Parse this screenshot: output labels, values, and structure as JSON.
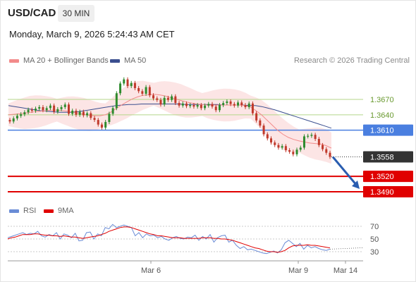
{
  "header": {
    "symbol": "USD/CAD",
    "timeframe": "30 MIN",
    "datetime": "Monday, March 9, 2026 5:24:43 AM CET"
  },
  "legend": {
    "ma20_label": "MA 20 + Bollinger Bands",
    "ma50_label": "MA 50",
    "credit": "Research © 2026 Trading Central",
    "rsi_label": "RSI",
    "ma9_label": "9MA"
  },
  "colors": {
    "ma20": "#f28b8b",
    "ma50": "#3b4f8f",
    "bands_fill": "#fbdcdc",
    "up_candle": "#2e8b2e",
    "down_candle": "#c0392b",
    "resistance": "#b5d68a",
    "pivot": "#4a7fe0",
    "support": "#e00000",
    "current": "#333333",
    "arrow": "#2a5db0",
    "rsi": "#6a8cd6",
    "rsi_ma": "#e00000"
  },
  "chart_data": {
    "type": "candlestick",
    "symbol": "USD/CAD",
    "interval": "30 MIN",
    "ylim": [
      1.3475,
      1.3725
    ],
    "x_ticks": [
      "Mar 6",
      "Mar 9",
      "Mar 14"
    ],
    "levels": [
      {
        "value": 1.367,
        "label": "1.3670",
        "kind": "resistance"
      },
      {
        "value": 1.364,
        "label": "1.3640",
        "kind": "resistance"
      },
      {
        "value": 1.361,
        "label": "1.3610",
        "kind": "pivot"
      },
      {
        "value": 1.3558,
        "label": "1.3558",
        "kind": "current"
      },
      {
        "value": 1.352,
        "label": "1.3520",
        "kind": "support"
      },
      {
        "value": 1.349,
        "label": "1.3490",
        "kind": "support"
      }
    ],
    "candles_close": [
      1.3627,
      1.3633,
      1.3638,
      1.3641,
      1.3645,
      1.365,
      1.3648,
      1.3652,
      1.3655,
      1.3649,
      1.3653,
      1.3658,
      1.3646,
      1.3651,
      1.3655,
      1.366,
      1.3642,
      1.3648,
      1.364,
      1.3646,
      1.3639,
      1.3643,
      1.3634,
      1.363,
      1.3621,
      1.3615,
      1.3626,
      1.3642,
      1.3653,
      1.3682,
      1.3701,
      1.3709,
      1.3696,
      1.3702,
      1.3692,
      1.3686,
      1.3681,
      1.3694,
      1.3678,
      1.3672,
      1.3669,
      1.366,
      1.3673,
      1.3669,
      1.3676,
      1.3663,
      1.3658,
      1.3662,
      1.3657,
      1.3659,
      1.3656,
      1.3659,
      1.3653,
      1.3658,
      1.3661,
      1.3656,
      1.3649,
      1.3659,
      1.3663,
      1.3666,
      1.3661,
      1.3658,
      1.3664,
      1.3659,
      1.3655,
      1.3662,
      1.3643,
      1.3629,
      1.3619,
      1.3602,
      1.3594,
      1.3586,
      1.3581,
      1.3576,
      1.3579,
      1.3571,
      1.3568,
      1.3563,
      1.3572,
      1.3576,
      1.3598,
      1.3599,
      1.3601,
      1.3593,
      1.3581,
      1.3573,
      1.3566,
      1.3558
    ],
    "ma20": [
      1.364,
      1.3641,
      1.3642,
      1.3643,
      1.3645,
      1.3646,
      1.3647,
      1.3648,
      1.3649,
      1.3649,
      1.3648,
      1.3647,
      1.3645,
      1.3643,
      1.3641,
      1.3639,
      1.3638,
      1.3638,
      1.364,
      1.3645,
      1.3652,
      1.3659,
      1.3665,
      1.3671,
      1.3675,
      1.3678,
      1.3679,
      1.368,
      1.3679,
      1.3677,
      1.3674,
      1.3671,
      1.3668,
      1.3665,
      1.3663,
      1.3661,
      1.366,
      1.3659,
      1.3659,
      1.3659,
      1.3659,
      1.3659,
      1.3659,
      1.3659,
      1.3658,
      1.3655,
      1.3648,
      1.364,
      1.363,
      1.362,
      1.361,
      1.3602,
      1.3596,
      1.3592,
      1.3589,
      1.3587,
      1.3585,
      1.3584,
      1.3583,
      1.358,
      1.3575
    ],
    "ma50": [
      1.3658,
      1.3656,
      1.3654,
      1.3652,
      1.365,
      1.3648,
      1.3647,
      1.3646,
      1.3645,
      1.3645,
      1.3645,
      1.3646,
      1.3648,
      1.365,
      1.3652,
      1.3654,
      1.3656,
      1.3658,
      1.3659,
      1.366,
      1.366,
      1.3661,
      1.3661,
      1.3661,
      1.3661,
      1.3661,
      1.3661,
      1.3661,
      1.366,
      1.366,
      1.366,
      1.366,
      1.366,
      1.366,
      1.3659,
      1.3659,
      1.3659,
      1.3659,
      1.3658,
      1.3658,
      1.3656,
      1.3653,
      1.365,
      1.3646,
      1.3642,
      1.3638,
      1.3634,
      1.363,
      1.3626,
      1.3622,
      1.3618,
      1.3614
    ],
    "forecast_target": 1.349,
    "rsi": {
      "ylim": [
        20,
        80
      ],
      "ticks": [
        70,
        50,
        30
      ],
      "values": [
        52,
        54,
        56,
        58,
        60,
        57,
        59,
        58,
        62,
        55,
        53,
        57,
        55,
        60,
        50,
        58,
        56,
        52,
        59,
        47,
        48,
        60,
        61,
        50,
        58,
        55,
        68,
        66,
        73,
        68,
        70,
        72,
        70,
        68,
        55,
        60,
        52,
        58,
        55,
        56,
        52,
        54,
        50,
        48,
        52,
        54,
        51,
        50,
        53,
        52,
        56,
        48,
        54,
        50,
        57,
        45,
        52,
        55,
        56,
        45,
        48,
        40,
        35,
        38,
        33,
        34,
        32,
        30,
        28,
        27,
        29,
        31,
        28,
        33,
        44,
        48,
        43,
        38,
        43,
        34,
        40,
        36,
        38,
        35,
        33,
        32,
        34
      ],
      "ma9": [
        50,
        52,
        53,
        55,
        57,
        57,
        57,
        58,
        58,
        57,
        56,
        56,
        55,
        55,
        54,
        55,
        54,
        53,
        53,
        52,
        51,
        52,
        53,
        54,
        55,
        57,
        59,
        62,
        64,
        66,
        68,
        69,
        69,
        68,
        66,
        64,
        62,
        60,
        58,
        57,
        55,
        55,
        54,
        53,
        52,
        52,
        52,
        51,
        51,
        51,
        51,
        51,
        52,
        52,
        52,
        51,
        51,
        50,
        50,
        49,
        48,
        46,
        44,
        42,
        40,
        38,
        36,
        35,
        33,
        31,
        30,
        30,
        29,
        30,
        32,
        36,
        39,
        40,
        40,
        40,
        41,
        40,
        40,
        39,
        38,
        37,
        36
      ]
    }
  }
}
